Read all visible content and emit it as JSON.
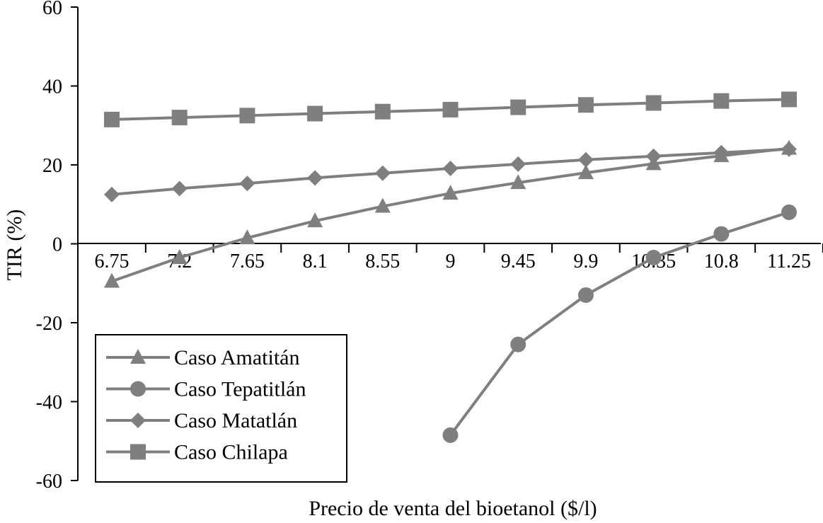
{
  "chart_data": {
    "type": "line",
    "title": "",
    "xlabel": "Precio de venta del bioetanol ($/l)",
    "ylabel": "TIR (%)",
    "ylim": [
      -60,
      60
    ],
    "yticks": [
      60,
      40,
      20,
      0,
      -20,
      -40,
      -60
    ],
    "categories": [
      "6.75",
      "7.2",
      "7.65",
      "8.1",
      "8.55",
      "9",
      "9.45",
      "9.9",
      "10.35",
      "10.8",
      "11.25"
    ],
    "series_color": "#7f7f7f",
    "legend_position": "bottom-left",
    "grid": false,
    "series": [
      {
        "name": "Caso Amatitán",
        "marker": "triangle",
        "values": [
          -9.5,
          -3.5,
          1.5,
          5.8,
          9.5,
          12.8,
          15.5,
          18.0,
          20.3,
          22.3,
          24.2
        ]
      },
      {
        "name": "Caso Tepatitlán",
        "marker": "circle",
        "values": [
          null,
          null,
          null,
          null,
          null,
          -48.5,
          -25.5,
          -13.0,
          -3.5,
          2.5,
          8.0
        ]
      },
      {
        "name": "Caso Matatlán",
        "marker": "diamond",
        "values": [
          12.5,
          14.0,
          15.3,
          16.7,
          17.9,
          19.1,
          20.2,
          21.3,
          22.2,
          23.1,
          24.0
        ]
      },
      {
        "name": "Caso Chilapa",
        "marker": "square",
        "values": [
          31.5,
          32.0,
          32.5,
          33.0,
          33.5,
          34.0,
          34.6,
          35.2,
          35.7,
          36.2,
          36.6
        ]
      }
    ]
  }
}
